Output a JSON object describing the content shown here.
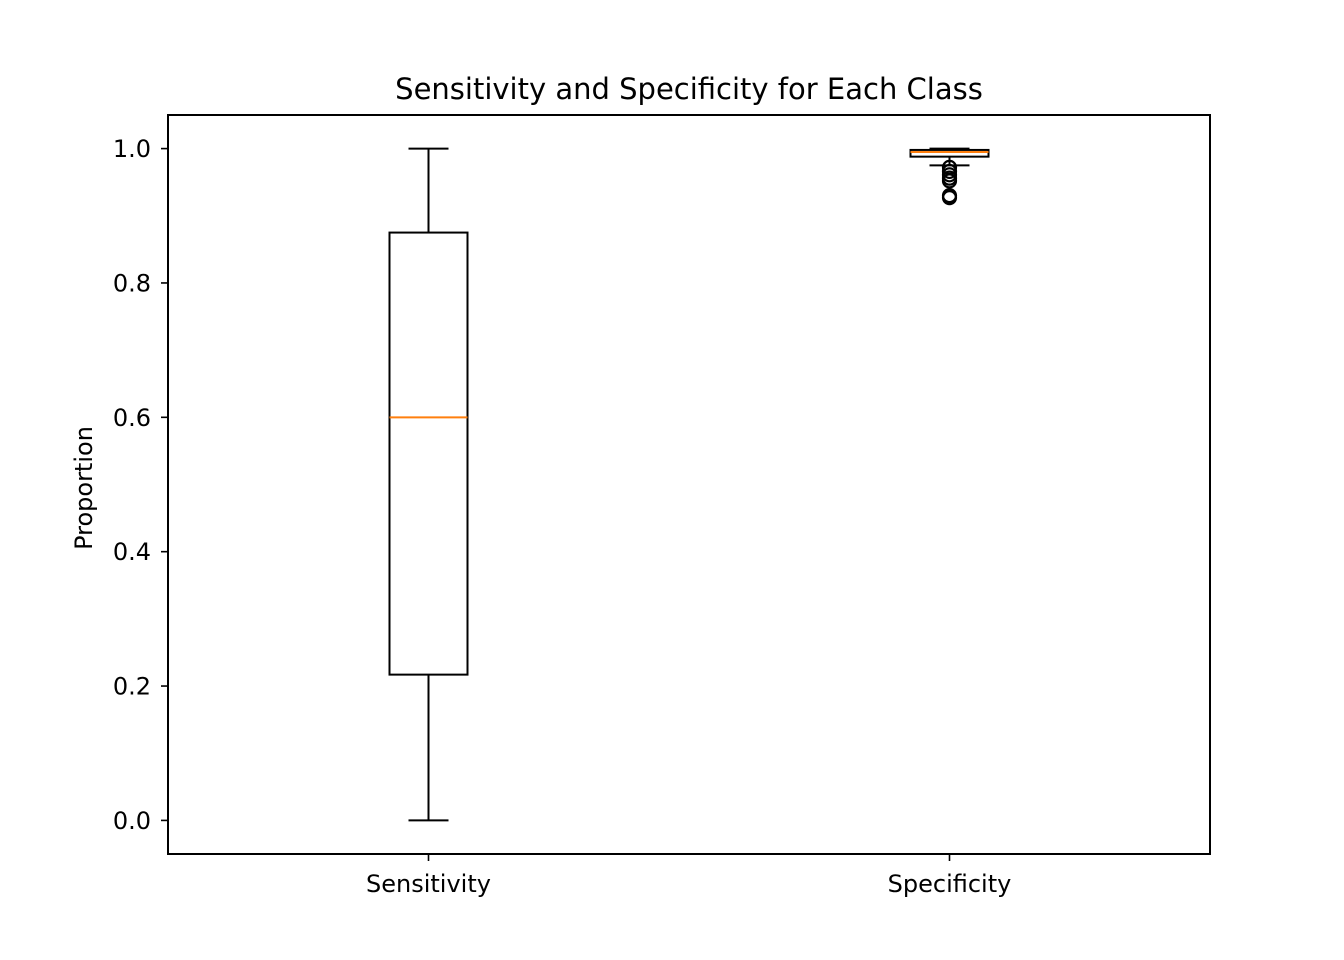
{
  "chart_data": {
    "type": "box",
    "title": "Sensitivity and Specificity for Each Class",
    "xlabel": "",
    "ylabel": "Proportion",
    "ylim": [
      -0.05,
      1.05
    ],
    "yticks": [
      0.0,
      0.2,
      0.4,
      0.6,
      0.8,
      1.0
    ],
    "ytick_labels": [
      "0.0",
      "0.2",
      "0.4",
      "0.6",
      "0.8",
      "1.0"
    ],
    "categories": [
      "Sensitivity",
      "Specificity"
    ],
    "boxes": [
      {
        "name": "Sensitivity",
        "whisker_low": 0.0,
        "q1": 0.217,
        "median": 0.6,
        "q3": 0.875,
        "whisker_high": 1.0,
        "outliers": []
      },
      {
        "name": "Specificity",
        "whisker_low": 0.975,
        "q1": 0.988,
        "median": 0.995,
        "q3": 0.998,
        "whisker_high": 1.0,
        "outliers": [
          0.972,
          0.966,
          0.961,
          0.956,
          0.952,
          0.93,
          0.927
        ]
      }
    ],
    "grid": false,
    "legend": "none",
    "colors": {
      "box": "#000000",
      "median": "#ff7f0e",
      "outlier": "#000000"
    }
  }
}
